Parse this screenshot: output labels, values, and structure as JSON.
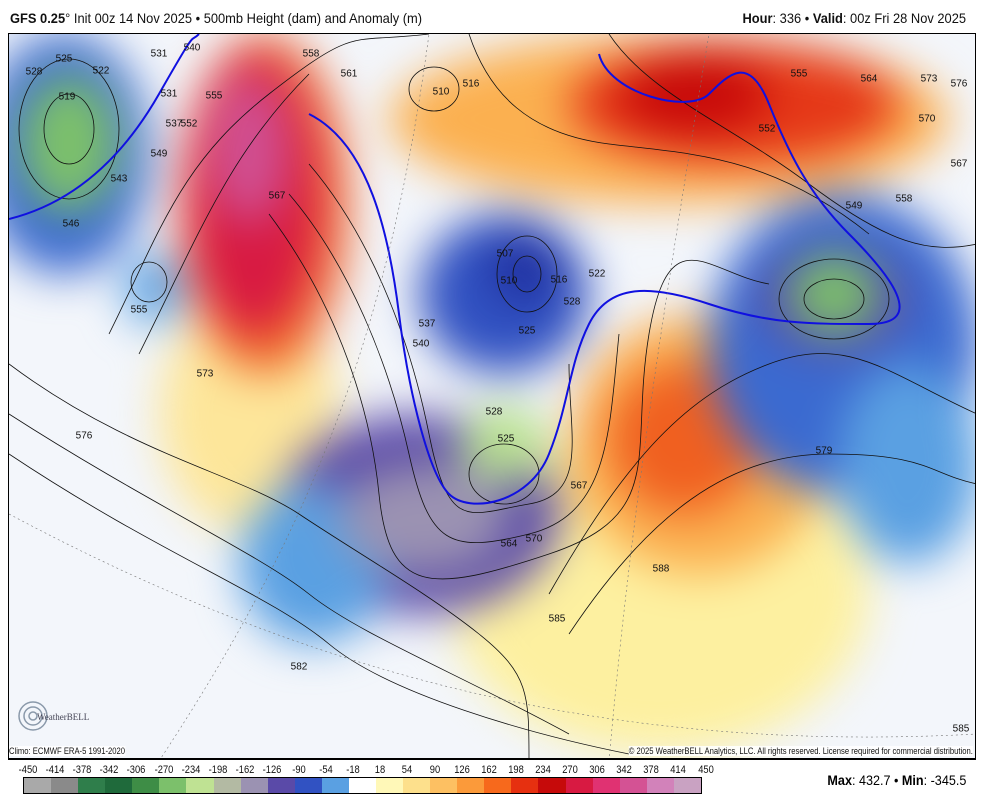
{
  "header": {
    "model": "GFS 0.25",
    "degree": "°",
    "init": "Init 00z 14 Nov 2025",
    "bullet": "•",
    "product": "500mb Height (dam) and Anomaly (m)",
    "hour_label": "Hour",
    "hour": "336",
    "valid_label": "Valid",
    "valid": "00z Fri 28 Nov 2025"
  },
  "map": {
    "climo": "Climo: ECMWF ERA-5 1991-2020",
    "copyright": "© 2025 WeatherBELL Analytics, LLC. All rights reserved. License required for commercial distribution.",
    "logo_text": "WeatherBELL",
    "contour_labels": [
      "531",
      "528",
      "525",
      "519",
      "522",
      "531",
      "537",
      "540",
      "555",
      "552",
      "549",
      "543",
      "546",
      "558",
      "561",
      "567",
      "555",
      "573",
      "576",
      "582",
      "510",
      "516",
      "507",
      "510",
      "516",
      "522",
      "528",
      "525",
      "537",
      "540",
      "528",
      "525",
      "564",
      "567",
      "570",
      "579",
      "585",
      "588",
      "552",
      "555",
      "564",
      "573",
      "576",
      "570",
      "567",
      "558",
      "549",
      "585"
    ]
  },
  "colorbar": {
    "ticks": [
      "-450",
      "-414",
      "-378",
      "-342",
      "-306",
      "-270",
      "-234",
      "-198",
      "-162",
      "-126",
      "-90",
      "-54",
      "-18",
      "18",
      "54",
      "90",
      "126",
      "162",
      "198",
      "234",
      "270",
      "306",
      "342",
      "378",
      "414",
      "450"
    ],
    "colors": [
      "#a9a9a9",
      "#8a8a8a",
      "#2f7e4b",
      "#1f6a3b",
      "#3e8d46",
      "#7cc06b",
      "#bfe293",
      "#b3baa3",
      "#9b92b2",
      "#5a4aa8",
      "#3152c2",
      "#5aa0e2",
      "#ffffff",
      "#fff8b8",
      "#fde08c",
      "#fdc062",
      "#fb9a3a",
      "#f7691c",
      "#e63010",
      "#c60a0a",
      "#d81a42",
      "#e03272",
      "#d45294",
      "#d282ba",
      "#c9a2c2"
    ]
  },
  "stats": {
    "max_label": "Max",
    "max": "432.7",
    "min_label": "Min",
    "min": "-345.5"
  }
}
